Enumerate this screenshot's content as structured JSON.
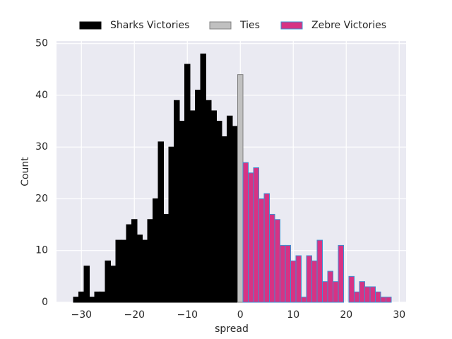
{
  "chart_data": {
    "type": "histogram",
    "xlabel": "spread",
    "ylabel": "Count",
    "xlim": [
      -34.7,
      31.3
    ],
    "ylim": [
      0,
      50.5
    ],
    "xticks": [
      {
        "value": -30,
        "label": "−30"
      },
      {
        "value": -20,
        "label": "−20"
      },
      {
        "value": -10,
        "label": "−10"
      },
      0,
      10,
      20,
      30
    ],
    "yticks": [
      0,
      10,
      20,
      30,
      40,
      50
    ],
    "grid": true,
    "legend": "top",
    "series": [
      {
        "name": "Sharks Victories",
        "color": "#000000",
        "edgecolor": "#000000",
        "bins": [
          -31.5,
          -30.5,
          -29.5,
          -28.5,
          -27.5,
          -26.5,
          -25.5,
          -24.5,
          -23.5,
          -22.5,
          -21.5,
          -20.5,
          -19.5,
          -18.5,
          -17.5,
          -16.5,
          -15.5,
          -14.5,
          -13.5,
          -12.5,
          -11.5,
          -10.5,
          -9.5,
          -8.5,
          -7.5,
          -6.5,
          -5.5,
          -4.5,
          -3.5,
          -2.5,
          -1.5,
          -0.5
        ],
        "values": [
          1,
          2,
          7,
          1,
          2,
          2,
          8,
          7,
          12,
          12,
          15,
          16,
          13,
          12,
          16,
          20,
          31,
          17,
          30,
          39,
          35,
          46,
          37,
          41,
          48,
          39,
          37,
          35,
          32,
          36,
          34
        ]
      },
      {
        "name": "Ties",
        "color": "#c0c0c0",
        "edgecolor": "#808080",
        "bins": [
          -0.5,
          0.5
        ],
        "values": [
          44
        ]
      },
      {
        "name": "Zebre Victories",
        "color": "#d63384",
        "edgecolor": "#3f8fd0",
        "bins": [
          0.5,
          1.5,
          2.5,
          3.5,
          4.5,
          5.5,
          6.5,
          7.5,
          8.5,
          9.5,
          10.5,
          11.5,
          12.5,
          13.5,
          14.5,
          15.5,
          16.5,
          17.5,
          18.5,
          19.5,
          20.5,
          21.5,
          22.5,
          23.5,
          24.5,
          25.5,
          26.5,
          27.5,
          28.5
        ],
        "values": [
          27,
          25,
          26,
          20,
          21,
          17,
          16,
          11,
          11,
          8,
          9,
          1,
          9,
          8,
          12,
          4,
          6,
          4,
          11,
          0,
          5,
          2,
          4,
          3,
          3,
          2,
          1,
          1
        ]
      }
    ]
  }
}
